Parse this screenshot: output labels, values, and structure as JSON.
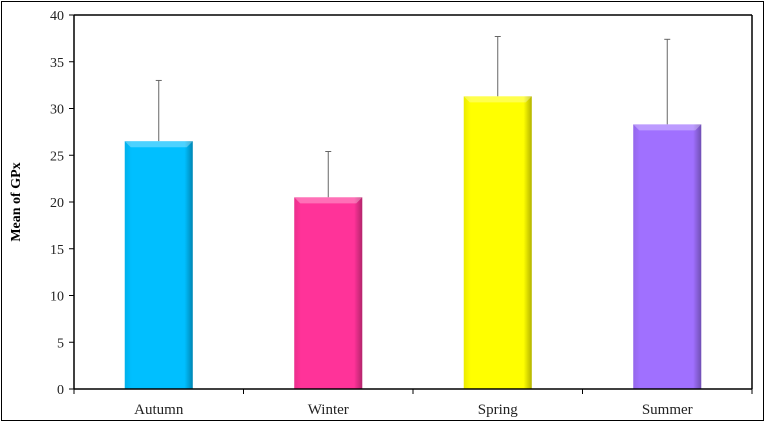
{
  "chart_data": {
    "type": "bar",
    "title": "",
    "xlabel": "",
    "ylabel": "Mean of GPx",
    "ylim": [
      0,
      40
    ],
    "yticks": [
      0,
      5,
      10,
      15,
      20,
      25,
      30,
      35,
      40
    ],
    "categories": [
      "Autumn",
      "Winter",
      "Spring",
      "Summer"
    ],
    "values": [
      26.5,
      20.5,
      31.3,
      28.3
    ],
    "error_upper": [
      33.0,
      25.4,
      37.7,
      37.4
    ],
    "colors": [
      "#00BFFF",
      "#FF3399",
      "#FFFF00",
      "#A070FF"
    ],
    "grid": false,
    "legend": "none"
  }
}
